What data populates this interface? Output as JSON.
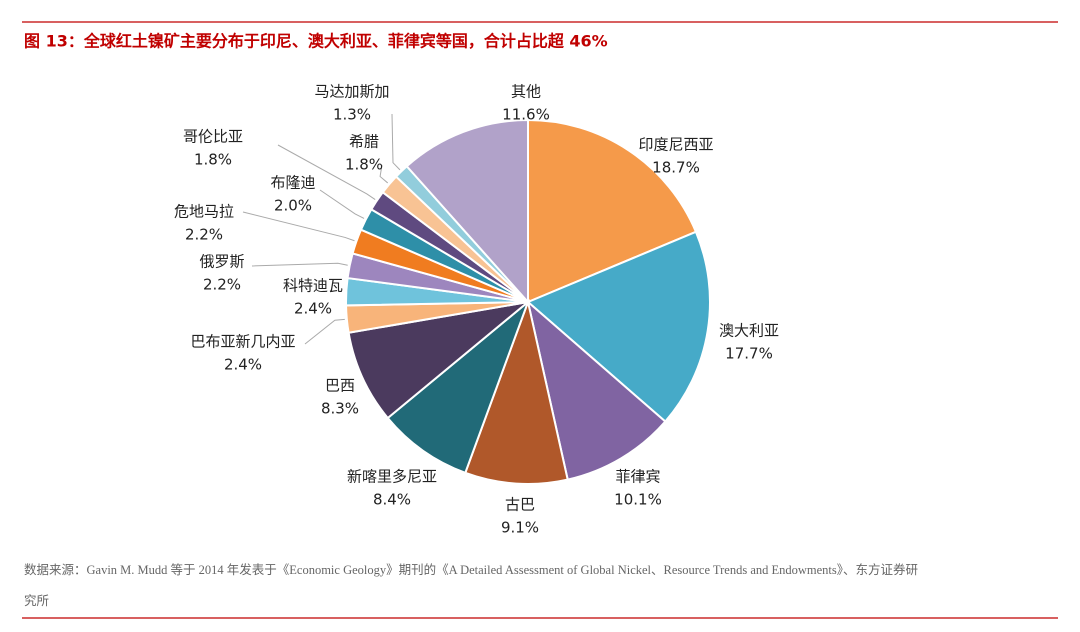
{
  "chart_data": {
    "type": "pie",
    "title": "图 13：全球红土镍矿主要分布于印尼、澳大利亚、菲律宾等国，合计占比超 46%",
    "source": [
      "数据来源：Gavin M. Mudd 等于 2014 年发表于《Economic Geology》期刊的《A Detailed Assessment of Global Nickel、Resource Trends and Endowments》、东方证券研",
      "究所"
    ],
    "categories": [
      "印度尼西亚",
      "澳大利亚",
      "菲律宾",
      "古巴",
      "新喀里多尼亚",
      "巴西",
      "巴布亚新几内亚",
      "科特迪瓦",
      "俄罗斯",
      "危地马拉",
      "布隆迪",
      "哥伦比亚",
      "希腊",
      "马达加斯加",
      "其他"
    ],
    "values": [
      18.7,
      17.7,
      10.1,
      9.1,
      8.4,
      8.3,
      2.4,
      2.4,
      2.2,
      2.2,
      2.0,
      1.8,
      1.8,
      1.3,
      11.6
    ],
    "value_labels": [
      "18.7%",
      "17.7%",
      "10.1%",
      "9.1%",
      "8.4%",
      "8.3%",
      "2.4%",
      "2.4%",
      "2.2%",
      "2.2%",
      "2.0%",
      "1.8%",
      "1.8%",
      "1.3%",
      "11.6%"
    ],
    "colors": [
      "#f59a4a",
      "#46aac8",
      "#8064a2",
      "#b0582a",
      "#216a78",
      "#4b3a5e",
      "#f8b47a",
      "#6fc3dc",
      "#9d86be",
      "#f07c20",
      "#2e8fa8",
      "#5f4a80",
      "#f8c394",
      "#92cddc",
      "#b1a2c9"
    ]
  }
}
